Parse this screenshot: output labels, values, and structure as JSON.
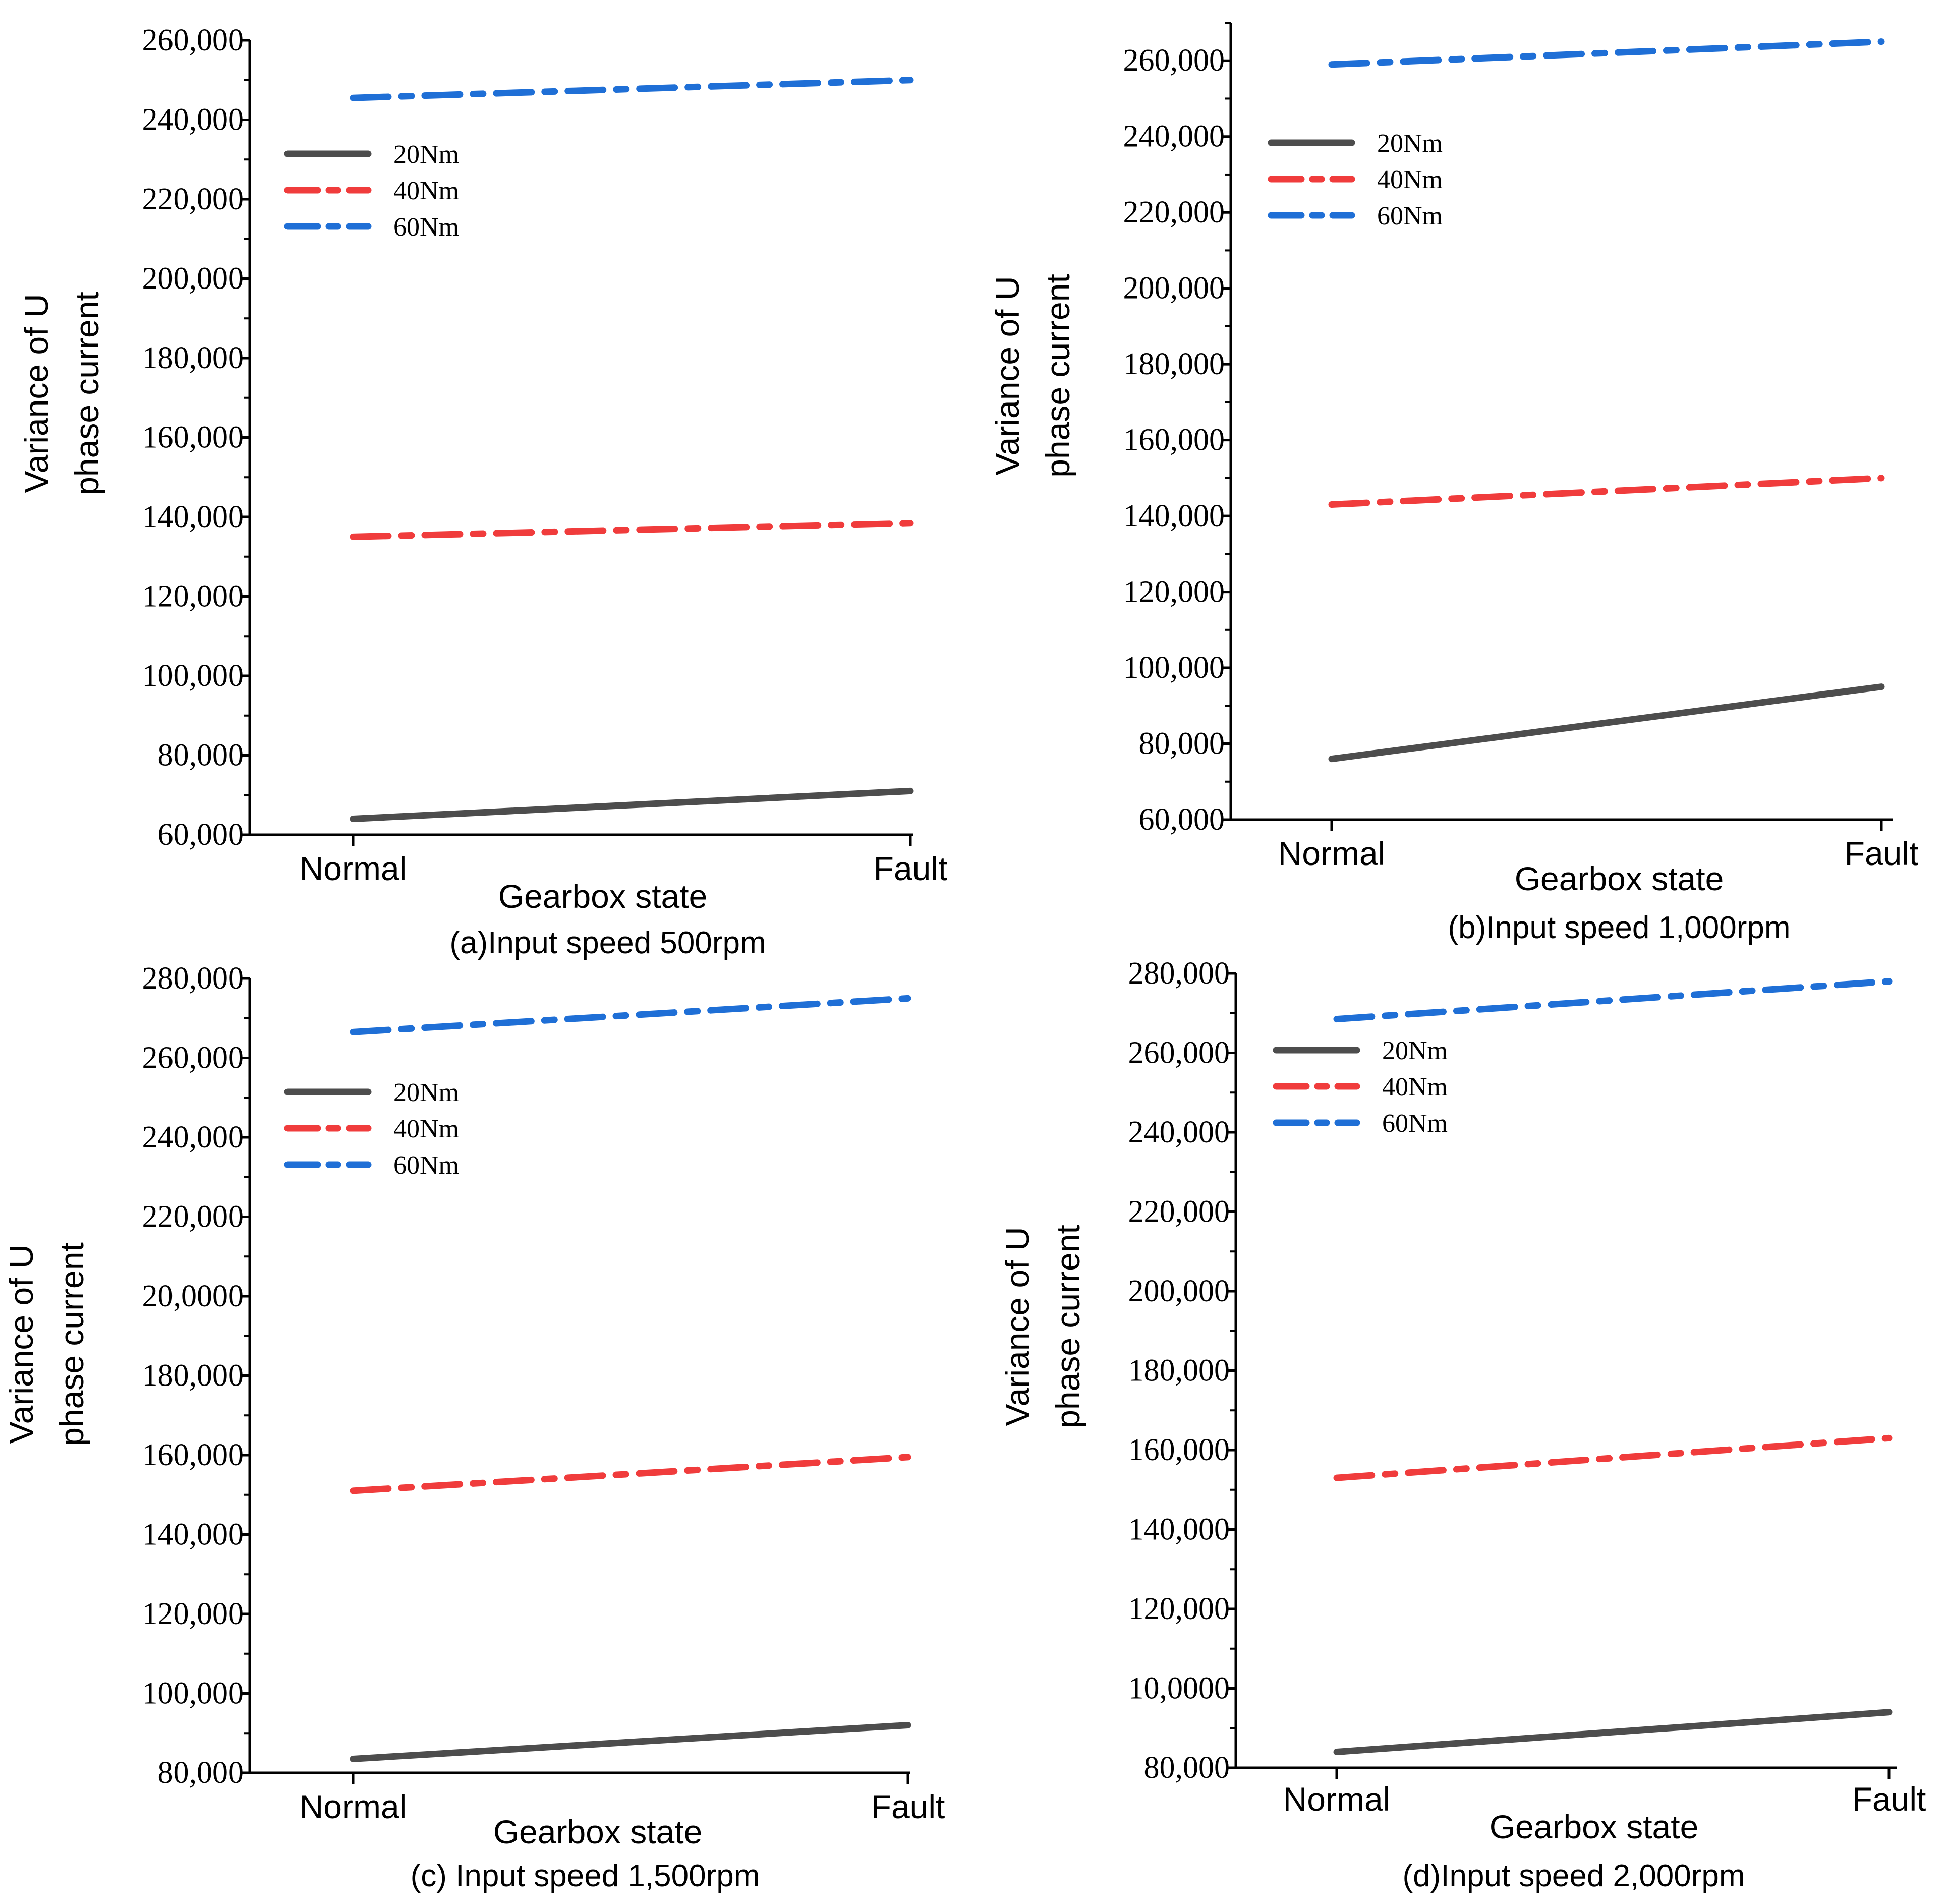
{
  "chart_data": [
    {
      "type": "line",
      "caption": "(a)Input speed 500rpm",
      "xlabel": "Gearbox state",
      "ylabel_lines": [
        "Variance of U",
        "phase current"
      ],
      "categories": [
        "Normal",
        "Fault"
      ],
      "ylim": [
        60000,
        260000
      ],
      "yticks": [
        60000,
        80000,
        100000,
        120000,
        140000,
        160000,
        180000,
        200000,
        220000,
        240000,
        260000
      ],
      "ytick_labels": [
        "60,000",
        "80,000",
        "100,000",
        "120,000",
        "140,000",
        "160,000",
        "180,000",
        "200,000",
        "220,000",
        "240,000",
        "260,000"
      ],
      "legend_position": "top-left",
      "series": [
        {
          "name": "20Nm",
          "color": "#4d4d4d",
          "style": "solid",
          "values": [
            64000,
            71000
          ]
        },
        {
          "name": "40Nm",
          "color": "#f03c3c",
          "style": "dash-dot",
          "values": [
            135000,
            138500
          ]
        },
        {
          "name": "60Nm",
          "color": "#1f6fd6",
          "style": "dash-dot",
          "values": [
            245500,
            250000
          ]
        }
      ]
    },
    {
      "type": "line",
      "caption": "(b)Input speed 1,000rpm",
      "xlabel": "Gearbox state",
      "ylabel_lines": [
        "Variance of U",
        "phase current"
      ],
      "categories": [
        "Normal",
        "Fault"
      ],
      "ylim": [
        60000,
        270000
      ],
      "yticks": [
        60000,
        80000,
        100000,
        120000,
        140000,
        160000,
        180000,
        200000,
        220000,
        240000,
        260000
      ],
      "ytick_labels": [
        "60,000",
        "80,000",
        "100,000",
        "120,000",
        "140,000",
        "160,000",
        "180,000",
        "200,000",
        "220,000",
        "240,000",
        "260,000"
      ],
      "legend_position": "top-left",
      "series": [
        {
          "name": "20Nm",
          "color": "#4d4d4d",
          "style": "solid",
          "values": [
            76000,
            95000
          ]
        },
        {
          "name": "40Nm",
          "color": "#f03c3c",
          "style": "dash-dot",
          "values": [
            143000,
            150000
          ]
        },
        {
          "name": "60Nm",
          "color": "#1f6fd6",
          "style": "dash-dot",
          "values": [
            259000,
            265000
          ]
        }
      ]
    },
    {
      "type": "line",
      "caption": "(c) Input speed 1,500rpm",
      "xlabel": "Gearbox state",
      "ylabel_lines": [
        "Variance of U",
        "phase current"
      ],
      "categories": [
        "Normal",
        "Fault"
      ],
      "ylim": [
        80000,
        280000
      ],
      "yticks": [
        80000,
        100000,
        120000,
        140000,
        160000,
        180000,
        200000,
        220000,
        240000,
        260000,
        280000
      ],
      "ytick_labels": [
        "80,000",
        "100,000",
        "120,000",
        "140,000",
        "160,000",
        "180,000",
        "20,0000",
        "220,000",
        "240,000",
        "260,000",
        "280,000"
      ],
      "legend_position": "top-left",
      "series": [
        {
          "name": "20Nm",
          "color": "#4d4d4d",
          "style": "solid",
          "values": [
            83500,
            92000
          ]
        },
        {
          "name": "40Nm",
          "color": "#f03c3c",
          "style": "dash-dot",
          "values": [
            151000,
            159500
          ]
        },
        {
          "name": "60Nm",
          "color": "#1f6fd6",
          "style": "dash-dot",
          "values": [
            266500,
            275000
          ]
        }
      ]
    },
    {
      "type": "line",
      "caption": "(d)Input speed 2,000rpm",
      "xlabel": "Gearbox state",
      "ylabel_lines": [
        "Variance of U",
        "phase current"
      ],
      "categories": [
        "Normal",
        "Fault"
      ],
      "ylim": [
        80000,
        280000
      ],
      "yticks": [
        80000,
        100000,
        120000,
        140000,
        160000,
        180000,
        200000,
        220000,
        240000,
        260000,
        280000
      ],
      "ytick_labels": [
        "80,000",
        "10,0000",
        "120,000",
        "140,000",
        "160,000",
        "180,000",
        "200,000",
        "220,000",
        "240,000",
        "260,000",
        "280,000"
      ],
      "legend_position": "top-left",
      "series": [
        {
          "name": "20Nm",
          "color": "#4d4d4d",
          "style": "solid",
          "values": [
            84000,
            94000
          ]
        },
        {
          "name": "40Nm",
          "color": "#f03c3c",
          "style": "dash-dot",
          "values": [
            153000,
            163000
          ]
        },
        {
          "name": "60Nm",
          "color": "#1f6fd6",
          "style": "dash-dot",
          "values": [
            268500,
            278000
          ]
        }
      ]
    }
  ]
}
